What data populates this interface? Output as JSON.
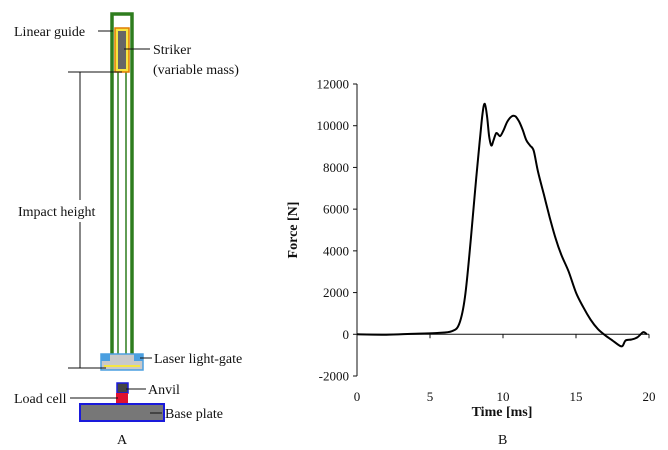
{
  "diagram": {
    "panel_label": "A",
    "labels": {
      "linear_guide": "Linear guide",
      "striker_line1": "Striker",
      "striker_line2": "(variable mass)",
      "impact_height": "Impact height",
      "laser_light_gate": "Laser light-gate",
      "anvil": "Anvil",
      "load_cell": "Load cell",
      "base_plate": "Base plate"
    },
    "colors": {
      "guide": "#2e7d1e",
      "striker_fill": "#666666",
      "striker_border": "#e07b00",
      "highlight": "#f5e642",
      "gate": "#4a9fe0",
      "plate_border": "#1a1adb",
      "load_cell": "#e01030",
      "metal": "#777777"
    }
  },
  "chart_data": {
    "type": "line",
    "panel_label": "B",
    "xlabel": "Time [ms]",
    "ylabel": "Force [N]",
    "xlim": [
      0,
      20
    ],
    "ylim": [
      -2000,
      12000
    ],
    "xticks": [
      0,
      5,
      10,
      15,
      20
    ],
    "yticks": [
      -2000,
      0,
      2000,
      4000,
      6000,
      8000,
      10000,
      12000
    ],
    "series": [
      {
        "x": [
          0,
          2,
          4,
          5.5,
          6.5,
          7,
          7.4,
          7.8,
          8.1,
          8.4,
          8.6,
          8.75,
          8.9,
          9.05,
          9.2,
          9.35,
          9.55,
          9.8,
          10.05,
          10.3,
          10.6,
          10.85,
          11.1,
          11.35,
          11.6,
          11.85,
          12.1,
          12.4,
          12.8,
          13.2,
          13.6,
          14,
          14.5,
          15,
          15.5,
          16,
          16.5,
          17,
          17.5,
          18,
          18.2,
          18.4,
          18.8,
          19.2,
          19.6,
          19.85
        ],
        "y": [
          0,
          -20,
          30,
          60,
          150,
          500,
          1800,
          4600,
          7000,
          9200,
          10600,
          11050,
          10500,
          9500,
          9050,
          9300,
          9650,
          9500,
          9800,
          10200,
          10450,
          10450,
          10200,
          9800,
          9300,
          9050,
          8800,
          7800,
          6700,
          5600,
          4600,
          3800,
          3000,
          2000,
          1300,
          700,
          250,
          -50,
          -300,
          -550,
          -550,
          -300,
          -250,
          -150,
          100,
          0
        ]
      }
    ]
  }
}
